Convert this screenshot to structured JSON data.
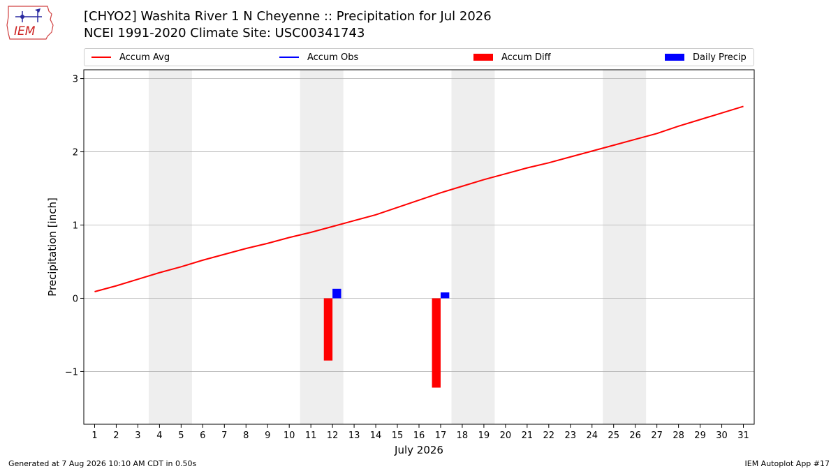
{
  "header": {
    "title_line_1": "[CHYO2] Washita River 1 N Cheyenne :: Precipitation for Jul 2026",
    "title_line_2": "NCEI 1991-2020 Climate Site: USC00341743",
    "logo_text": "IEM",
    "logo_icon": "iem-iowa-state-logo-icon"
  },
  "footer": {
    "left": "Generated at 7 Aug 2026 10:10 AM CDT in 0.50s",
    "right": "IEM Autoplot App #17"
  },
  "colors": {
    "accum_avg": "#ff0000",
    "accum_obs": "#0000ff",
    "accum_diff": "#ff0000",
    "daily_precip": "#0000ff",
    "weekend_shade": "#eeeeee",
    "grid": "#b0b0b0"
  },
  "chart_data": {
    "type": "bar",
    "xlabel": "July 2026",
    "ylabel": "Precipitation [inch]",
    "xlim": [
      0.5,
      31.5
    ],
    "ylim": [
      -1.72,
      3.12
    ],
    "yticks": [
      -1,
      0,
      1,
      2,
      3
    ],
    "ytick_labels": [
      "−1",
      "0",
      "1",
      "2",
      "3"
    ],
    "x": [
      1,
      2,
      3,
      4,
      5,
      6,
      7,
      8,
      9,
      10,
      11,
      12,
      13,
      14,
      15,
      16,
      17,
      18,
      19,
      20,
      21,
      22,
      23,
      24,
      25,
      26,
      27,
      28,
      29,
      30,
      31
    ],
    "grid": "horizontal",
    "legend_placement": "top",
    "legend": [
      "Accum Avg",
      "Accum Obs",
      "Accum Diff",
      "Daily Precip"
    ],
    "weekend_shading": [
      [
        3.5,
        5.5
      ],
      [
        10.5,
        12.5
      ],
      [
        17.5,
        19.5
      ],
      [
        24.5,
        26.5
      ]
    ],
    "series": [
      {
        "name": "Accum Avg",
        "kind": "line",
        "values": [
          0.09,
          0.17,
          0.26,
          0.35,
          0.43,
          0.52,
          0.6,
          0.68,
          0.75,
          0.83,
          0.9,
          0.98,
          1.06,
          1.14,
          1.24,
          1.34,
          1.44,
          1.53,
          1.62,
          1.7,
          1.78,
          1.85,
          1.93,
          2.01,
          2.09,
          2.17,
          2.25,
          2.35,
          2.44,
          2.53,
          2.62
        ]
      },
      {
        "name": "Accum Diff",
        "kind": "bar",
        "points": [
          [
            11.8,
            -0.85
          ],
          [
            16.8,
            -1.22
          ]
        ]
      },
      {
        "name": "Daily Precip",
        "kind": "bar",
        "points": [
          [
            12.2,
            0.13
          ],
          [
            17.2,
            0.08
          ]
        ]
      }
    ]
  }
}
